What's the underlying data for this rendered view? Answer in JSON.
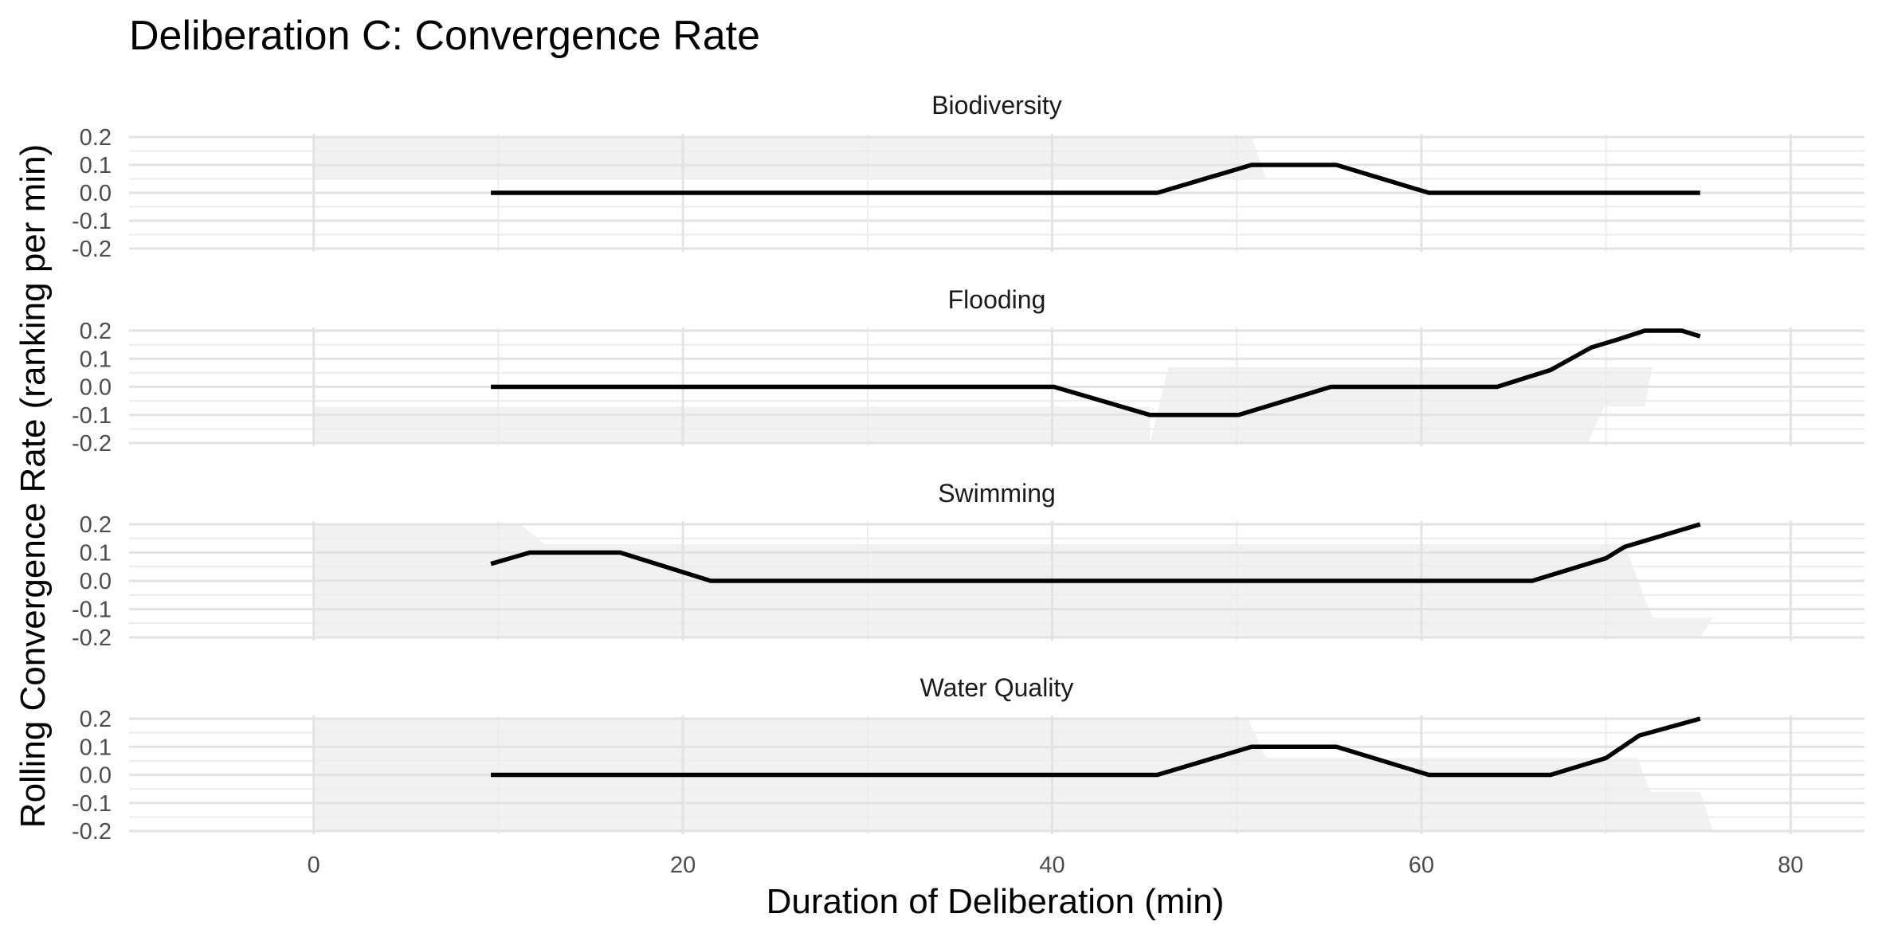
{
  "chart_data": {
    "type": "line",
    "title": "Deliberation C: Convergence Rate",
    "xlabel": "Duration of Deliberation (min)",
    "ylabel": "Rolling Convergence Rate (ranking per min)",
    "xlim": [
      -10,
      84
    ],
    "x_ticks": [
      0,
      20,
      40,
      60,
      80
    ],
    "ylim": [
      -0.2,
      0.2
    ],
    "y_ticks": [
      0.2,
      0.1,
      0.0,
      -0.1,
      -0.2
    ],
    "y_tick_labels": [
      "0.2",
      "0.1",
      "0.0",
      "-0.1",
      "-0.2"
    ],
    "grid": true,
    "line_color": "#000000",
    "shade_color": "#ebebeb",
    "panels": [
      {
        "name": "Biodiversity",
        "x": [
          9.6,
          45.7,
          50.8,
          55.4,
          60.4,
          75.1
        ],
        "y": [
          0.0,
          0.0,
          0.1,
          0.1,
          0.0,
          0.0
        ],
        "shade": [
          {
            "x": [
              0,
              50.8,
              51.6,
              0
            ],
            "y": [
              0.2,
              0.2,
              0.05,
              0.05
            ]
          }
        ]
      },
      {
        "name": "Flooding",
        "x": [
          9.6,
          40.1,
          45.3,
          50.1,
          55.1,
          59.8,
          64.1,
          67.0,
          69.2,
          70.7,
          72.1,
          74.1,
          75.1
        ],
        "y": [
          0.0,
          0.0,
          -0.1,
          -0.1,
          0.0,
          0.0,
          0.0,
          0.06,
          0.14,
          0.17,
          0.2,
          0.2,
          0.18
        ],
        "shade": [
          {
            "x": [
              0,
              45.3,
              45.3,
              0
            ],
            "y": [
              -0.07,
              -0.07,
              -0.2,
              -0.2
            ]
          },
          {
            "x": [
              45.3,
              46.3,
              72.5,
              72.1,
              69.9,
              69.0
            ],
            "y": [
              -0.2,
              0.07,
              0.07,
              -0.07,
              -0.07,
              -0.2
            ]
          }
        ]
      },
      {
        "name": "Swimming",
        "x": [
          9.6,
          11.7,
          16.6,
          21.5,
          50.0,
          66.0,
          70.0,
          71.0,
          75.1
        ],
        "y": [
          0.06,
          0.1,
          0.1,
          0.0,
          0.0,
          0.0,
          0.08,
          0.12,
          0.2
        ],
        "shade": [
          {
            "x": [
              0,
              11.2,
              12.5,
              21.5,
              71.0,
              72.5,
              75.8,
              75.1,
              0
            ],
            "y": [
              0.2,
              0.2,
              0.13,
              0.13,
              0.13,
              -0.13,
              -0.13,
              -0.2,
              -0.2
            ]
          }
        ]
      },
      {
        "name": "Water Quality",
        "x": [
          9.6,
          45.7,
          50.8,
          55.4,
          60.4,
          67.0,
          70.0,
          71.8,
          75.1
        ],
        "y": [
          0.0,
          0.0,
          0.1,
          0.1,
          0.0,
          0.0,
          0.06,
          0.14,
          0.2
        ],
        "shade": [
          {
            "x": [
              0,
              50.6,
              51.6,
              71.7,
              72.4,
              75.1,
              75.8,
              0
            ],
            "y": [
              0.2,
              0.2,
              0.06,
              0.06,
              -0.06,
              -0.06,
              -0.2,
              -0.2
            ]
          }
        ]
      }
    ]
  }
}
